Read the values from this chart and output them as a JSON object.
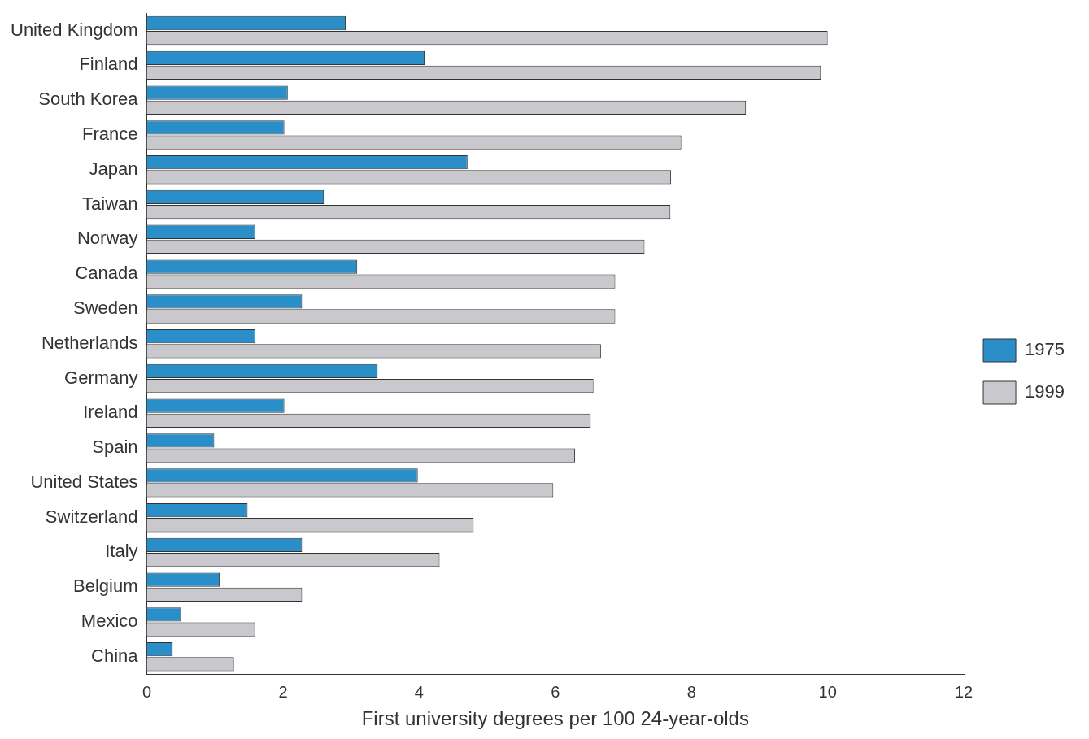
{
  "chart_data": {
    "type": "bar",
    "orientation": "horizontal",
    "xlabel": "First university degrees per 100 24-year-olds",
    "categories": [
      "United Kingdom",
      "Finland",
      "South Korea",
      "France",
      "Japan",
      "Taiwan",
      "Norway",
      "Canada",
      "Sweden",
      "Netherlands",
      "Germany",
      "Ireland",
      "Spain",
      "United States",
      "Switzerland",
      "Italy",
      "Belgium",
      "Mexico",
      "China"
    ],
    "series": [
      {
        "name": "1975",
        "color": "#2a8fc8",
        "values": [
          2.92,
          4.08,
          2.07,
          2.02,
          4.71,
          2.6,
          1.59,
          3.09,
          2.28,
          1.59,
          3.39,
          2.02,
          0.99,
          3.98,
          1.48,
          2.28,
          1.07,
          0.5,
          0.38
        ]
      },
      {
        "name": "1999",
        "color": "#c8c8cd",
        "values": [
          10.0,
          9.9,
          8.8,
          7.85,
          7.7,
          7.69,
          7.31,
          6.88,
          6.88,
          6.67,
          6.56,
          6.52,
          6.29,
          5.97,
          4.8,
          4.3,
          2.28,
          1.59,
          1.28
        ]
      }
    ],
    "xlim": [
      0,
      12
    ],
    "xticks": [
      0,
      2,
      4,
      6,
      8,
      10,
      12
    ],
    "grid": false,
    "legend": "right"
  }
}
